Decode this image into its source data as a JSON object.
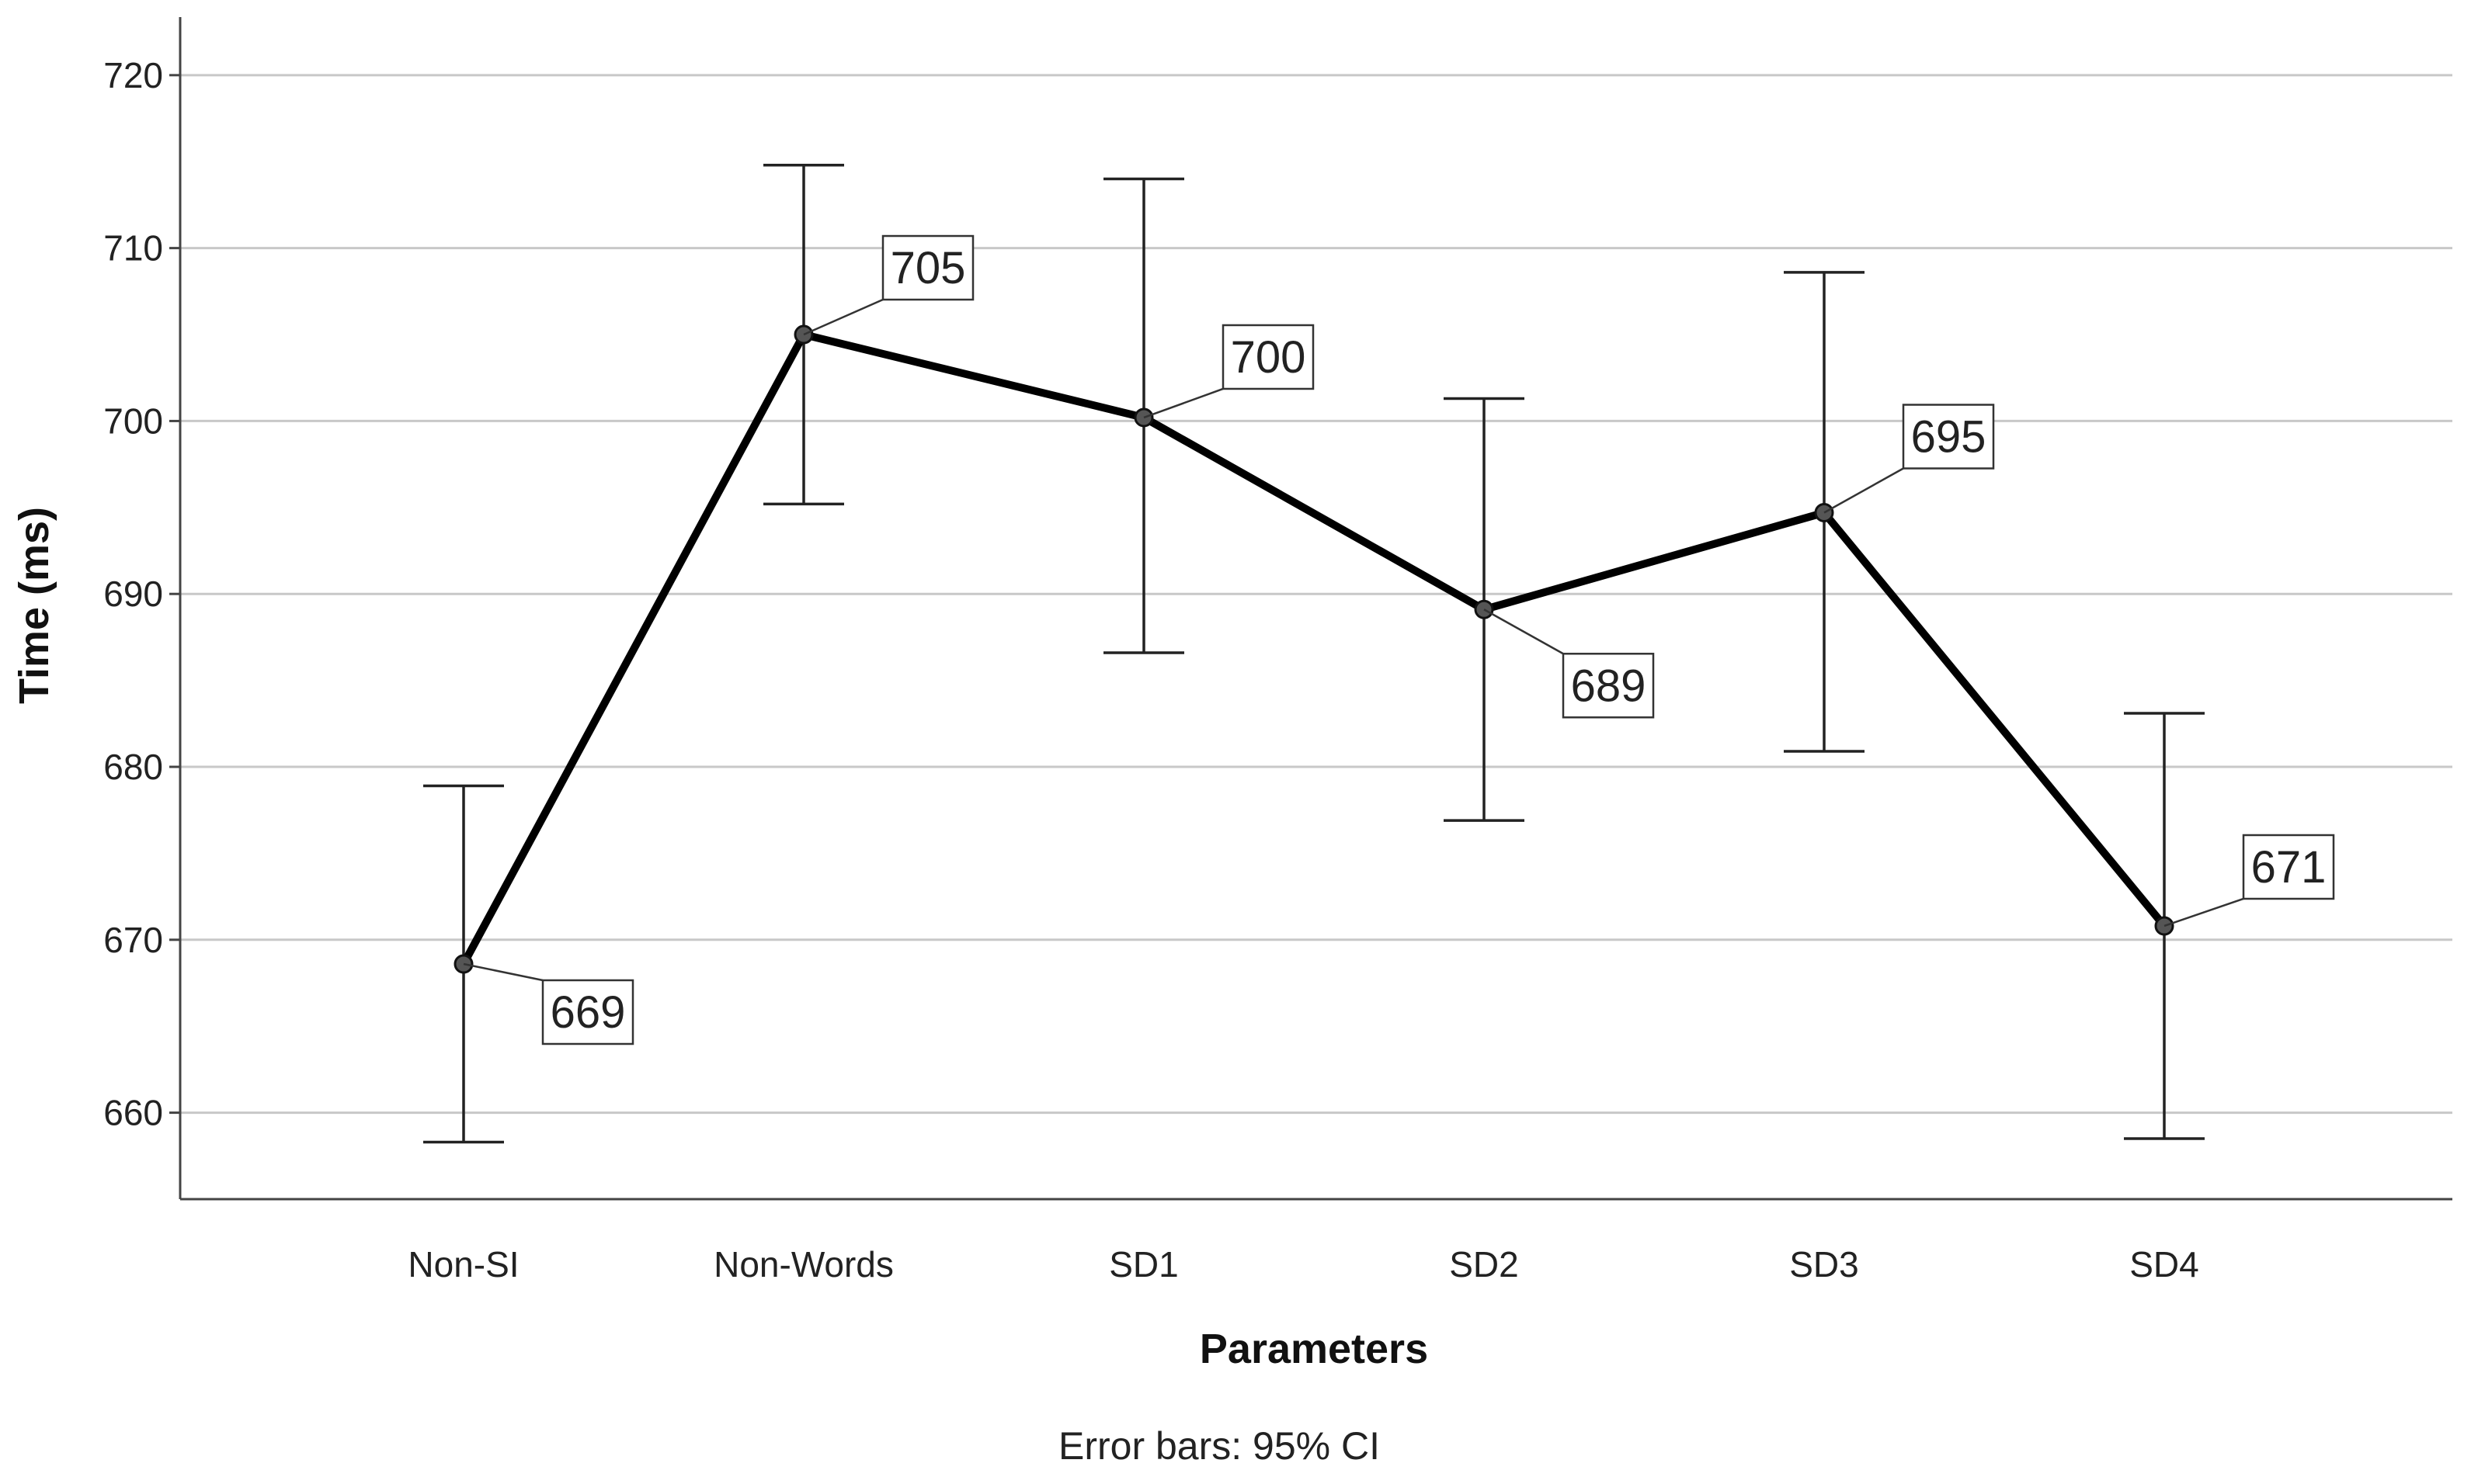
{
  "chart_data": {
    "type": "line",
    "categories": [
      "Non-SI",
      "Non-Words",
      "SD1",
      "SD2",
      "SD3",
      "SD4"
    ],
    "values": [
      668.6,
      705.0,
      700.2,
      689.1,
      694.7,
      670.8
    ],
    "ci_lower": [
      658.3,
      695.2,
      686.6,
      676.9,
      680.9,
      658.5
    ],
    "ci_upper": [
      678.9,
      714.8,
      714.0,
      701.3,
      708.6,
      683.1
    ],
    "data_labels": [
      "669",
      "705",
      "700",
      "689",
      "695",
      "671"
    ],
    "xlabel": "Parameters",
    "ylabel": "Time (ms)",
    "ylim": [
      655,
      723
    ],
    "yticks": [
      660,
      670,
      680,
      690,
      700,
      710,
      720
    ],
    "grid": true,
    "footnote": "Error bars: 95% CI",
    "colors": {
      "line": "#000000",
      "marker": "#555555",
      "gridline": "#c8c8c8",
      "axis": "#444444"
    }
  }
}
